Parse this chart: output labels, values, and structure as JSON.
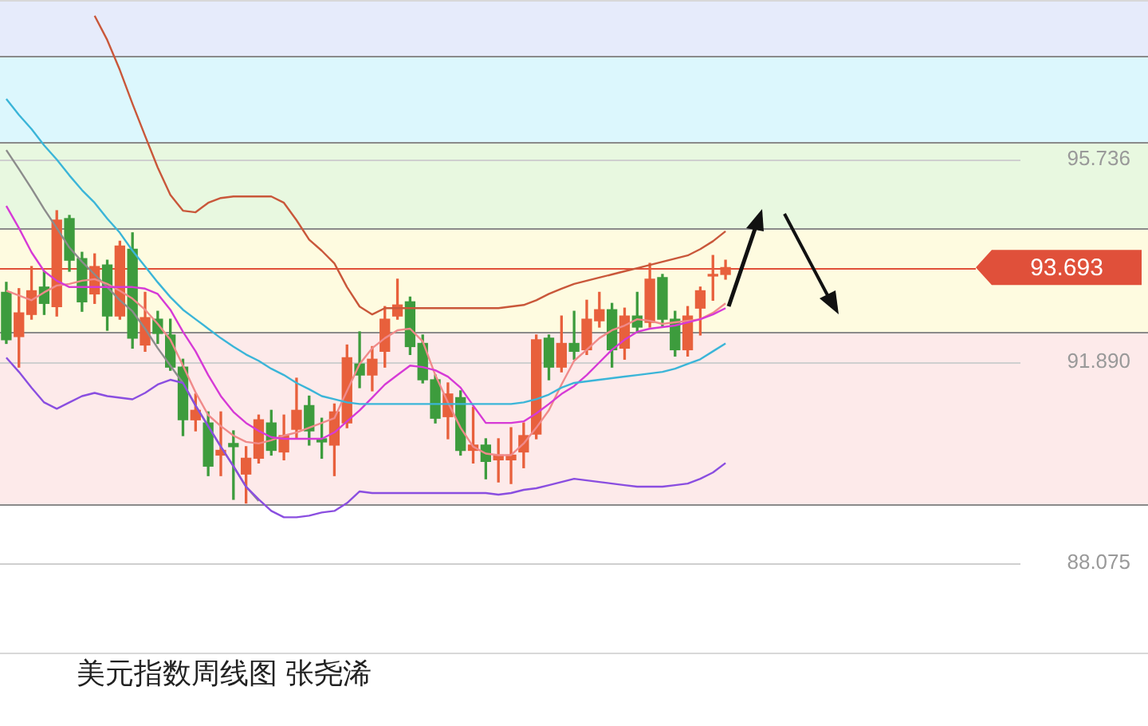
{
  "chart_data": {
    "type": "candlestick",
    "title": "美元指数周线图 张尧浠",
    "categories": [
      null,
      null,
      null,
      null,
      null,
      null,
      null,
      null,
      null,
      null,
      null,
      null,
      null,
      null,
      null,
      null,
      null,
      null,
      null,
      null,
      null,
      null,
      null,
      null,
      null,
      null,
      null,
      null,
      null,
      null,
      null,
      null,
      null,
      null,
      null,
      null,
      null,
      null,
      null,
      null,
      null,
      null,
      null,
      null,
      null,
      null,
      null,
      null,
      null,
      null,
      null,
      null,
      null,
      null,
      null,
      null,
      null,
      null
    ],
    "ohlc": [
      [
        93.22,
        93.41,
        92.25,
        92.32
      ],
      [
        92.38,
        93.29,
        91.8,
        92.83
      ],
      [
        92.8,
        93.71,
        92.71,
        93.25
      ],
      [
        93.32,
        93.62,
        92.8,
        93.01
      ],
      [
        92.95,
        94.77,
        92.77,
        94.59
      ],
      [
        94.62,
        94.68,
        93.62,
        93.83
      ],
      [
        93.86,
        93.98,
        92.86,
        93.04
      ],
      [
        93.19,
        93.95,
        93.01,
        93.71
      ],
      [
        93.74,
        93.83,
        92.5,
        92.77
      ],
      [
        92.77,
        94.19,
        92.71,
        94.1
      ],
      [
        94.04,
        94.35,
        92.16,
        92.35
      ],
      [
        92.22,
        93.22,
        92.1,
        92.74
      ],
      [
        92.71,
        92.86,
        92.25,
        92.44
      ],
      [
        92.41,
        92.71,
        91.74,
        91.8
      ],
      [
        91.8,
        91.95,
        90.5,
        90.8
      ],
      [
        90.8,
        91.29,
        90.59,
        90.98
      ],
      [
        90.74,
        90.95,
        89.74,
        89.92
      ],
      [
        90.13,
        90.95,
        89.74,
        90.22
      ],
      [
        90.35,
        90.59,
        89.29,
        90.29
      ],
      [
        89.77,
        90.29,
        89.22,
        90.07
      ],
      [
        90.07,
        90.89,
        89.98,
        90.8
      ],
      [
        90.74,
        90.98,
        90.13,
        90.22
      ],
      [
        90.19,
        90.89,
        90.04,
        90.5
      ],
      [
        90.62,
        91.59,
        90.44,
        90.98
      ],
      [
        91.07,
        91.25,
        90.32,
        90.59
      ],
      [
        90.44,
        90.83,
        90.07,
        90.38
      ],
      [
        90.32,
        91.1,
        89.74,
        90.95
      ],
      [
        90.74,
        92.22,
        90.65,
        91.98
      ],
      [
        91.86,
        92.47,
        91.41,
        91.65
      ],
      [
        91.65,
        92.19,
        91.35,
        91.95
      ],
      [
        92.1,
        92.95,
        91.8,
        92.71
      ],
      [
        92.77,
        93.47,
        92.71,
        92.98
      ],
      [
        93.04,
        93.13,
        92.04,
        92.19
      ],
      [
        92.25,
        92.41,
        91.5,
        91.56
      ],
      [
        91.56,
        91.65,
        90.74,
        90.83
      ],
      [
        90.86,
        91.5,
        90.44,
        91.29
      ],
      [
        91.22,
        91.35,
        90.13,
        90.22
      ],
      [
        90.22,
        91.04,
        89.98,
        90.32
      ],
      [
        90.32,
        90.44,
        89.68,
        90.01
      ],
      [
        90.04,
        90.44,
        89.62,
        90.13
      ],
      [
        90.04,
        90.65,
        89.59,
        90.13
      ],
      [
        90.19,
        90.74,
        89.89,
        90.5
      ],
      [
        90.53,
        92.41,
        90.44,
        92.32
      ],
      [
        92.35,
        92.41,
        91.56,
        91.8
      ],
      [
        91.8,
        92.77,
        91.71,
        92.25
      ],
      [
        92.25,
        92.86,
        91.95,
        92.1
      ],
      [
        92.13,
        93.07,
        92.04,
        92.71
      ],
      [
        92.68,
        93.22,
        92.56,
        92.89
      ],
      [
        92.89,
        93.01,
        91.8,
        92.13
      ],
      [
        92.16,
        92.92,
        91.95,
        92.77
      ],
      [
        92.77,
        93.22,
        92.47,
        92.56
      ],
      [
        92.65,
        93.77,
        92.56,
        93.47
      ],
      [
        93.5,
        93.56,
        92.56,
        92.71
      ],
      [
        92.71,
        92.86,
        92.01,
        92.13
      ],
      [
        92.13,
        92.95,
        92.01,
        92.77
      ],
      [
        92.92,
        93.32,
        92.41,
        93.25
      ],
      [
        93.53,
        93.92,
        93.07,
        93.56
      ],
      [
        93.56,
        93.83,
        93.47,
        93.69
      ]
    ],
    "colors": [
      "#3d9c3d",
      "#e8603c",
      "#e8603c",
      "#3d9c3d",
      "#e8603c",
      "#3d9c3d",
      "#3d9c3d",
      "#e8603c",
      "#3d9c3d",
      "#e8603c",
      "#3d9c3d",
      "#e8603c",
      "#3d9c3d",
      "#3d9c3d",
      "#3d9c3d",
      "#e8603c",
      "#3d9c3d",
      "#e8603c",
      "#3d9c3d",
      "#e8603c",
      "#e8603c",
      "#3d9c3d",
      "#e8603c",
      "#e8603c",
      "#3d9c3d",
      "#3d9c3d",
      "#e8603c",
      "#e8603c",
      "#3d9c3d",
      "#e8603c",
      "#e8603c",
      "#e8603c",
      "#3d9c3d",
      "#3d9c3d",
      "#3d9c3d",
      "#e8603c",
      "#3d9c3d",
      "#e8603c",
      "#3d9c3d",
      "#e8603c",
      "#e8603c",
      "#e8603c",
      "#e8603c",
      "#3d9c3d",
      "#e8603c",
      "#3d9c3d",
      "#e8603c",
      "#e8603c",
      "#3d9c3d",
      "#e8603c",
      "#3d9c3d",
      "#e8603c",
      "#3d9c3d",
      "#3d9c3d",
      "#e8603c",
      "#e8603c",
      "#e8603c",
      "#e8603c"
    ],
    "series": [
      {
        "type": "line",
        "color": "#c9573a",
        "values": [
          null,
          null,
          null,
          null,
          null,
          null,
          null,
          98.47,
          98.01,
          97.44,
          96.8,
          96.19,
          95.59,
          95.07,
          94.77,
          94.74,
          94.92,
          95.01,
          95.04,
          95.04,
          95.04,
          95.04,
          94.92,
          94.59,
          94.22,
          94.01,
          93.77,
          93.32,
          92.95,
          92.8,
          92.92,
          92.92,
          92.92,
          92.92,
          92.92,
          92.92,
          92.92,
          92.92,
          92.92,
          92.92,
          92.95,
          92.98,
          93.07,
          93.19,
          93.29,
          93.38,
          93.44,
          93.5,
          93.56,
          93.62,
          93.68,
          93.74,
          93.8,
          93.86,
          93.92,
          94.04,
          94.19,
          94.38
        ]
      },
      {
        "type": "line",
        "color": "#3bb5d8",
        "values": [
          96.89,
          96.59,
          96.32,
          96.01,
          95.74,
          95.44,
          95.16,
          94.92,
          94.62,
          94.35,
          94.01,
          93.71,
          93.41,
          93.13,
          92.89,
          92.71,
          92.53,
          92.35,
          92.19,
          92.04,
          91.92,
          91.77,
          91.65,
          91.5,
          91.38,
          91.25,
          91.19,
          91.13,
          91.1,
          91.1,
          91.1,
          91.1,
          91.1,
          91.1,
          91.1,
          91.1,
          91.1,
          91.1,
          91.1,
          91.1,
          91.1,
          91.13,
          91.19,
          91.28,
          91.41,
          91.5,
          91.53,
          91.56,
          91.59,
          91.62,
          91.65,
          91.68,
          91.71,
          91.77,
          91.86,
          91.95,
          92.1,
          92.25
        ]
      },
      {
        "type": "line",
        "color": "#d63ad6",
        "values": [
          94.86,
          94.44,
          93.98,
          93.62,
          93.44,
          93.32,
          93.32,
          93.32,
          93.32,
          93.32,
          93.32,
          93.29,
          93.19,
          92.89,
          92.47,
          92.1,
          91.65,
          91.25,
          90.95,
          90.74,
          90.59,
          90.47,
          90.44,
          90.44,
          90.44,
          90.44,
          90.56,
          90.77,
          90.98,
          91.22,
          91.47,
          91.65,
          91.83,
          91.8,
          91.74,
          91.62,
          91.41,
          91.07,
          90.74,
          90.74,
          90.74,
          90.77,
          90.92,
          91.1,
          91.29,
          91.44,
          91.65,
          91.89,
          92.13,
          92.32,
          92.47,
          92.53,
          92.56,
          92.59,
          92.65,
          92.71,
          92.8,
          92.92
        ]
      },
      {
        "type": "line",
        "color": "#8a4ee0",
        "values": [
          91.98,
          91.71,
          91.41,
          91.13,
          91.01,
          91.13,
          91.25,
          91.31,
          91.25,
          91.22,
          91.19,
          91.31,
          91.47,
          91.56,
          91.5,
          91.07,
          90.68,
          90.29,
          89.92,
          89.53,
          89.29,
          89.07,
          88.95,
          88.95,
          88.98,
          89.04,
          89.07,
          89.22,
          89.44,
          89.41,
          89.41,
          89.41,
          89.41,
          89.41,
          89.41,
          89.41,
          89.41,
          89.41,
          89.41,
          89.38,
          89.41,
          89.47,
          89.5,
          89.56,
          89.62,
          89.68,
          89.65,
          89.62,
          89.59,
          89.56,
          89.53,
          89.53,
          89.53,
          89.56,
          89.59,
          89.68,
          89.8,
          89.98
        ]
      },
      {
        "type": "line",
        "color": "#f08a8a",
        "values": [
          93.25,
          93.16,
          93.07,
          93.22,
          93.35,
          93.38,
          93.44,
          93.47,
          93.38,
          93.25,
          93.1,
          92.89,
          92.62,
          92.32,
          91.83,
          91.32,
          90.89,
          90.68,
          90.5,
          90.38,
          90.35,
          90.41,
          90.5,
          90.56,
          90.65,
          90.74,
          90.83,
          91.35,
          91.86,
          92.16,
          92.35,
          92.5,
          92.53,
          92.29,
          91.65,
          91.13,
          90.65,
          90.29,
          90.16,
          90.13,
          90.13,
          90.35,
          90.65,
          90.98,
          91.47,
          91.92,
          92.13,
          92.35,
          92.5,
          92.59,
          92.71,
          92.68,
          92.62,
          92.65,
          92.68,
          92.71,
          92.83,
          93.01
        ]
      },
      {
        "type": "line",
        "color": "#8c8c8c",
        "values": [
          95.92,
          95.56,
          95.19,
          94.8,
          94.44,
          94.07,
          93.8,
          93.56,
          93.32,
          93.07,
          92.86,
          92.53,
          92.16,
          91.83,
          91.5,
          91.07,
          90.68,
          90.29,
          89.92,
          89.53,
          89.26,
          null,
          null,
          null,
          null,
          null,
          null,
          null,
          null,
          null,
          null,
          null,
          null,
          null,
          null,
          null,
          null,
          null,
          null,
          null,
          null,
          null,
          null,
          null,
          null,
          null,
          null,
          null,
          null,
          null,
          null,
          null,
          null,
          null,
          null,
          null,
          null,
          null
        ]
      }
    ],
    "ylim": [
      86.35,
      98.77
    ],
    "yticks": [
      {
        "value": 95.736,
        "label": "95.736"
      },
      {
        "value": 91.89,
        "label": "91.890"
      },
      {
        "value": 88.075,
        "label": "88.075"
      }
    ],
    "grid": "y",
    "tick_labels": "y",
    "legend": false,
    "marker": "none",
    "ref_lines": [
      {
        "axis": "y",
        "value": 93.693,
        "label": "93.693",
        "color": "#e0503a"
      }
    ],
    "bands": [
      {
        "axis": "y",
        "from": 97.71,
        "to": 98.77,
        "color": "#e6ebfb"
      },
      {
        "axis": "y",
        "from": 96.07,
        "to": 97.71,
        "color": "#dcf7fd"
      },
      {
        "axis": "y",
        "from": 94.43,
        "to": 96.07,
        "color": "#e8f8e0"
      },
      {
        "axis": "y",
        "from": 92.46,
        "to": 94.43,
        "color": "#fefbe0"
      },
      {
        "axis": "y",
        "from": 89.19,
        "to": 92.46,
        "color": "#fdeaea"
      }
    ]
  }
}
